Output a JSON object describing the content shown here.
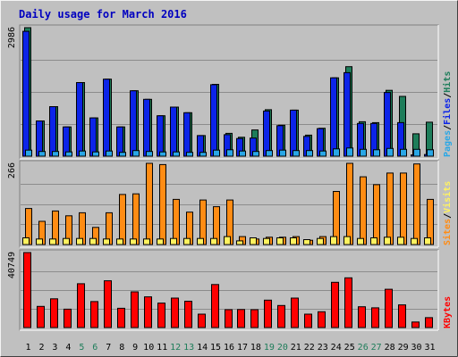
{
  "title": "Daily usage for March 2016",
  "colors": {
    "background": "#c0c0c0",
    "title": "#0000c0",
    "hits": "#1e7d5a",
    "files": "#0c24e8",
    "pages": "#29a7e6",
    "visits": "#fff25f",
    "sites": "#ff8c14",
    "kbytes": "#ff0000",
    "weekend_tick": "#1e7d5a",
    "weekday_tick": "#000000"
  },
  "chart_data": {
    "type": "bar",
    "days": [
      "1",
      "2",
      "3",
      "4",
      "5",
      "6",
      "7",
      "8",
      "9",
      "10",
      "11",
      "12",
      "13",
      "14",
      "15",
      "16",
      "17",
      "18",
      "19",
      "20",
      "21",
      "22",
      "23",
      "24",
      "25",
      "26",
      "27",
      "28",
      "29",
      "30",
      "31"
    ],
    "weekend_days": [
      "5",
      "6",
      "12",
      "13",
      "19",
      "20",
      "26",
      "27"
    ],
    "panels": [
      {
        "id": "hits-files-pages",
        "ymax_label": "2986",
        "legend": [
          "Pages",
          "/",
          "Files",
          "/",
          "Hits"
        ],
        "series": [
          {
            "name": "Hits",
            "values": [
              2986,
              820,
              1150,
              680,
              1710,
              890,
              1790,
              680,
              1520,
              1320,
              940,
              1140,
              1010,
              480,
              1670,
              530,
              440,
              610,
              1080,
              720,
              1070,
              490,
              650,
              1820,
              2080,
              800,
              780,
              1530,
              1390,
              520,
              790
            ]
          },
          {
            "name": "Files",
            "values": [
              2900,
              820,
              1150,
              680,
              1710,
              890,
              1790,
              680,
              1520,
              1320,
              940,
              1140,
              1010,
              480,
              1660,
              500,
              410,
              420,
              1050,
              710,
              1070,
              460,
              640,
              1820,
              1940,
              760,
              760,
              1480,
              780,
              30,
              40
            ]
          },
          {
            "name": "Pages",
            "values": [
              140,
              110,
              110,
              100,
              120,
              100,
              120,
              90,
              130,
              110,
              100,
              100,
              90,
              90,
              140,
              150,
              120,
              110,
              130,
              140,
              130,
              130,
              120,
              170,
              190,
              160,
              150,
              180,
              160,
              160,
              150
            ]
          }
        ]
      },
      {
        "id": "sites-visits",
        "ymax_label": "266",
        "legend": [
          "Sites",
          "/",
          "Visits"
        ],
        "series": [
          {
            "name": "Visits",
            "values": [
              22,
              18,
              18,
              20,
              20,
              20,
              18,
              18,
              18,
              18,
              18,
              20,
              20,
              20,
              20,
              26,
              12,
              22,
              20,
              22,
              22,
              16,
              20,
              26,
              26,
              20,
              22,
              24,
              24,
              20,
              22
            ]
          },
          {
            "name": "Sites",
            "values": [
              118,
              76,
              110,
              94,
              104,
              56,
              104,
              164,
              166,
              266,
              262,
              148,
              106,
              146,
              124,
              146,
              26,
              18,
              24,
              24,
              26,
              14,
              26,
              174,
              266,
              222,
              196,
              234,
              234,
              264,
              148
            ]
          }
        ]
      },
      {
        "id": "kbytes",
        "ymax_label": "40749",
        "legend": [
          "KBytes"
        ],
        "series": [
          {
            "name": "KBytes",
            "values": [
              40749,
              11500,
              15600,
              10000,
              23800,
              14100,
              25400,
              10500,
              19400,
              16700,
              13300,
              16000,
              14300,
              7300,
              23400,
              9700,
              9800,
              9700,
              14900,
              12000,
              16000,
              7300,
              8600,
              24600,
              27000,
              11300,
              10700,
              20800,
              12300,
              3000,
              5400
            ]
          }
        ]
      }
    ]
  }
}
